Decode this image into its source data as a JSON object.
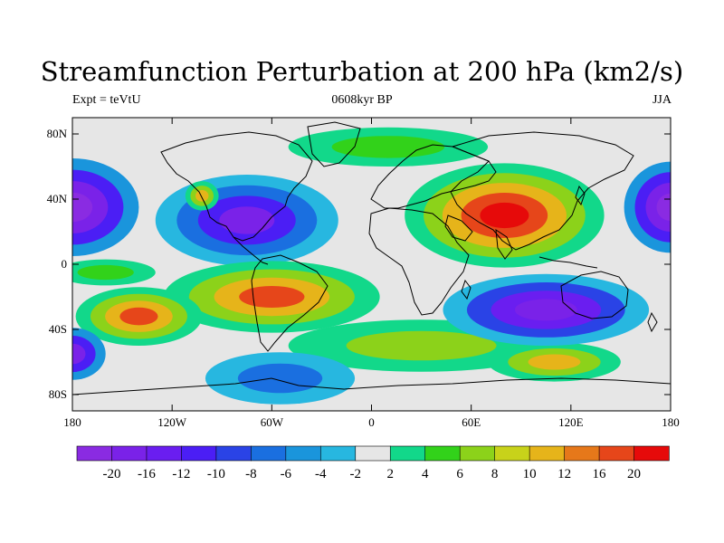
{
  "title": "Streamfunction Perturbation at 200 hPa (km2/s)",
  "subtitle_left": "Expt = teVtU",
  "subtitle_center": "0608kyr BP",
  "subtitle_right": "JJA",
  "map": {
    "type": "filled-contour-map",
    "projection": "cylindrical-equidistant",
    "lon_range": [
      -180,
      180
    ],
    "lat_range": [
      -90,
      90
    ],
    "background_color": "#e6e6e6",
    "lat_ticks": [
      {
        "value": 80,
        "label": "80N"
      },
      {
        "value": 40,
        "label": "40N"
      },
      {
        "value": 0,
        "label": "0"
      },
      {
        "value": -40,
        "label": "40S"
      },
      {
        "value": -80,
        "label": "80S"
      }
    ],
    "lon_ticks": [
      {
        "value": -180,
        "label": "180"
      },
      {
        "value": -120,
        "label": "120W"
      },
      {
        "value": -60,
        "label": "60W"
      },
      {
        "value": 0,
        "label": "0"
      },
      {
        "value": 60,
        "label": "60E"
      },
      {
        "value": 120,
        "label": "120E"
      },
      {
        "value": 180,
        "label": "180"
      }
    ],
    "blobs": [
      {
        "name": "n-pacific-high-west",
        "lon": -180,
        "lat": 35,
        "rx": 40,
        "ry": 30,
        "levels": [
          -4,
          -10,
          -16,
          -20
        ]
      },
      {
        "name": "n-pacific-high-east",
        "lon": 180,
        "lat": 35,
        "rx": 28,
        "ry": 28,
        "levels": [
          -4,
          -10,
          -16,
          -20
        ]
      },
      {
        "name": "n-atlantic-america-low",
        "lon": -75,
        "lat": 27,
        "rx": 55,
        "ry": 28,
        "levels": [
          -2,
          -6,
          -10,
          -16
        ]
      },
      {
        "name": "n-america-small-high",
        "lon": -102,
        "lat": 42,
        "rx": 10,
        "ry": 9,
        "levels": [
          2,
          6,
          10
        ]
      },
      {
        "name": "asian-high",
        "lon": 80,
        "lat": 30,
        "rx": 60,
        "ry": 32,
        "levels": [
          2,
          6,
          10,
          16,
          20
        ]
      },
      {
        "name": "s-america-high",
        "lon": -60,
        "lat": -20,
        "rx": 65,
        "ry": 22,
        "levels": [
          2,
          6,
          10,
          16
        ]
      },
      {
        "name": "s-pacific-high",
        "lon": -140,
        "lat": -32,
        "rx": 38,
        "ry": 18,
        "levels": [
          2,
          6,
          10,
          16
        ]
      },
      {
        "name": "s-atlantic-band",
        "lon": 30,
        "lat": -50,
        "rx": 80,
        "ry": 16,
        "levels": [
          2,
          6
        ]
      },
      {
        "name": "indian-ocean-band",
        "lon": 110,
        "lat": -60,
        "rx": 40,
        "ry": 12,
        "levels": [
          2,
          6,
          10
        ]
      },
      {
        "name": "australia-low",
        "lon": 105,
        "lat": -28,
        "rx": 62,
        "ry": 22,
        "levels": [
          -2,
          -8,
          -12,
          -16
        ]
      },
      {
        "name": "antarctic-low",
        "lon": -55,
        "lat": -70,
        "rx": 45,
        "ry": 16,
        "levels": [
          -2,
          -6
        ]
      },
      {
        "name": "s-pacific-west-low",
        "lon": -180,
        "lat": -55,
        "rx": 20,
        "ry": 16,
        "levels": [
          -4,
          -10,
          -16
        ]
      },
      {
        "name": "arctic-high",
        "lon": 10,
        "lat": 72,
        "rx": 60,
        "ry": 12,
        "levels": [
          2,
          4
        ]
      },
      {
        "name": "pacific-eq-high",
        "lon": -160,
        "lat": -5,
        "rx": 30,
        "ry": 8,
        "levels": [
          2,
          4
        ]
      }
    ]
  },
  "colorbar": {
    "colors": [
      "#8a2be2",
      "#7a22e8",
      "#6a1ef0",
      "#4b1ef5",
      "#2a43e6",
      "#1a6fe0",
      "#1a95dc",
      "#27b7e0",
      "#e6e6e6",
      "#12d88a",
      "#32d21a",
      "#8cd21a",
      "#c8d21a",
      "#e6b41a",
      "#e6781a",
      "#e6461a",
      "#e60a0a"
    ],
    "labels": [
      "-20",
      "-16",
      "-12",
      "-10",
      "-8",
      "-6",
      "-4",
      "-2",
      "2",
      "4",
      "6",
      "8",
      "10",
      "12",
      "16",
      "20"
    ]
  }
}
